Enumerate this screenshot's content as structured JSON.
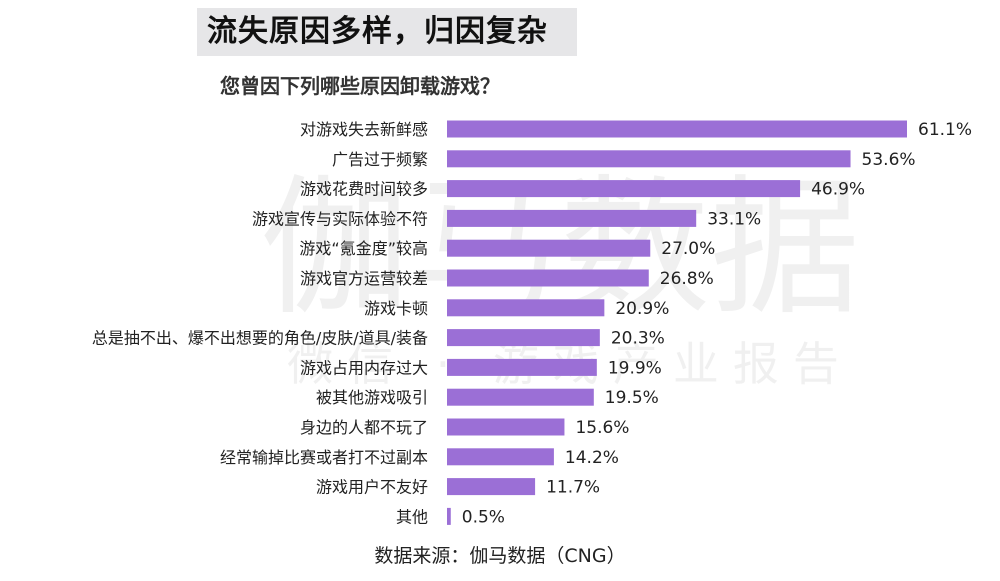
{
  "header": {
    "title": "流失原因多样，归因复杂",
    "subtitle": "您曾因下列哪些原因卸载游戏？"
  },
  "watermark": {
    "main": "伽马数据",
    "sub": "微信 · 游戏产业报告"
  },
  "footer": {
    "source": "数据来源：伽马数据（CNG）"
  },
  "colors": {
    "bar": "#9b6fd6",
    "title_bg": "#e6e6e8"
  },
  "chart_data": {
    "type": "bar",
    "orientation": "horizontal",
    "title": "您曾因下列哪些原因卸载游戏？",
    "xlim": [
      0,
      70
    ],
    "grid": false,
    "categories": [
      "对游戏失去新鲜感",
      "广告过于频繁",
      "游戏花费时间较多",
      "游戏宣传与实际体验不符",
      "游戏“氪金度”较高",
      "游戏官方运营较差",
      "游戏卡顿",
      "总是抽不出、爆不出想要的角色/皮肤/道具/装备",
      "游戏占用内存过大",
      "被其他游戏吸引",
      "身边的人都不玩了",
      "经常输掉比赛或者打不过副本",
      "游戏用户不友好",
      "其他"
    ],
    "values": [
      61.1,
      53.6,
      46.9,
      33.1,
      27.0,
      26.8,
      20.9,
      20.3,
      19.9,
      19.5,
      15.6,
      14.2,
      11.7,
      0.5
    ],
    "value_labels": [
      "61.1%",
      "53.6%",
      "46.9%",
      "33.1%",
      "27.0%",
      "26.8%",
      "20.9%",
      "20.3%",
      "19.9%",
      "19.5%",
      "15.6%",
      "14.2%",
      "11.7%",
      "0.5%"
    ]
  }
}
